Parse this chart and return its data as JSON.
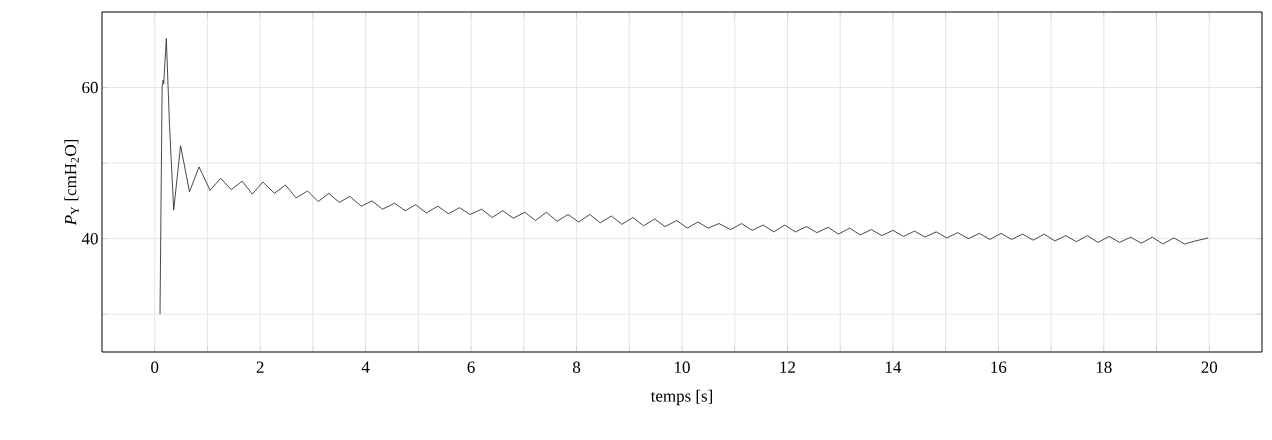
{
  "chart_data": {
    "type": "line",
    "xlabel": "temps [s]",
    "ylabel": "*P*$_{Y}$ [cmH$_{2}$O]",
    "xlim": [
      -1,
      21
    ],
    "ylim": [
      25,
      70
    ],
    "xticks": [
      0,
      {
        "value": 1,
        "label": null
      },
      2,
      {
        "value": 3,
        "label": null
      },
      4,
      {
        "value": 5,
        "label": null
      },
      6,
      {
        "value": 7,
        "label": null
      },
      8,
      {
        "value": 9,
        "label": null
      },
      10,
      {
        "value": 11,
        "label": null
      },
      12,
      {
        "value": 13,
        "label": null
      },
      14,
      {
        "value": 15,
        "label": null
      },
      16,
      {
        "value": 17,
        "label": null
      },
      18,
      {
        "value": 19,
        "label": null
      },
      20
    ],
    "yticks": [
      {
        "value": 30,
        "label": null
      },
      40,
      {
        "value": 50,
        "label": null
      },
      60
    ],
    "grid": true,
    "series": [
      {
        "color": "#333333",
        "x": [
          0.1,
          0.14,
          0.16,
          0.17,
          0.22,
          0.28,
          0.36,
          0.49,
          0.66,
          0.84,
          1.05,
          1.25,
          1.45,
          1.66,
          1.85,
          2.05,
          2.27,
          2.48,
          2.68,
          2.9,
          3.1,
          3.3,
          3.5,
          3.7,
          3.92,
          4.12,
          4.32,
          4.55,
          4.75,
          4.95,
          5.15,
          5.37,
          5.57,
          5.78,
          5.98,
          6.2,
          6.4,
          6.6,
          6.8,
          7.02,
          7.22,
          7.43,
          7.63,
          7.84,
          8.04,
          8.25,
          8.45,
          8.66,
          8.86,
          9.07,
          9.27,
          9.48,
          9.68,
          9.9,
          10.1,
          10.3,
          10.5,
          10.7,
          10.92,
          11.13,
          11.33,
          11.54,
          11.74,
          11.95,
          12.15,
          12.36,
          12.56,
          12.77,
          12.97,
          13.18,
          13.38,
          13.59,
          13.79,
          14.0,
          14.2,
          14.41,
          14.61,
          14.82,
          15.02,
          15.23,
          15.43,
          15.64,
          15.84,
          16.05,
          16.25,
          16.46,
          16.66,
          16.87,
          17.07,
          17.28,
          17.48,
          17.69,
          17.89,
          18.1,
          18.3,
          18.51,
          18.71,
          18.92,
          19.12,
          19.33,
          19.53,
          19.74,
          19.98
        ],
        "values": [
          30,
          60,
          61,
          60.5,
          66.5,
          55,
          43.8,
          52.3,
          46.2,
          49.5,
          46.4,
          48.0,
          46.5,
          47.6,
          45.9,
          47.5,
          46.0,
          47.1,
          45.4,
          46.3,
          44.9,
          46.0,
          44.8,
          45.6,
          44.3,
          45.0,
          43.9,
          44.7,
          43.7,
          44.5,
          43.4,
          44.3,
          43.3,
          44.1,
          43.2,
          43.9,
          42.8,
          43.7,
          42.7,
          43.5,
          42.4,
          43.5,
          42.3,
          43.2,
          42.2,
          43.2,
          42.1,
          43.0,
          41.9,
          42.8,
          41.7,
          42.6,
          41.6,
          42.4,
          41.4,
          42.2,
          41.4,
          42.0,
          41.2,
          42.0,
          41.1,
          41.8,
          40.9,
          41.8,
          40.9,
          41.6,
          40.8,
          41.5,
          40.6,
          41.4,
          40.5,
          41.2,
          40.4,
          41.1,
          40.3,
          41.0,
          40.2,
          40.9,
          40.1,
          40.8,
          40.0,
          40.7,
          39.9,
          40.7,
          39.9,
          40.6,
          39.8,
          40.6,
          39.7,
          40.4,
          39.6,
          40.4,
          39.5,
          40.3,
          39.5,
          40.2,
          39.4,
          40.2,
          39.3,
          40.1,
          39.3,
          39.7,
          40.1
        ]
      }
    ]
  }
}
